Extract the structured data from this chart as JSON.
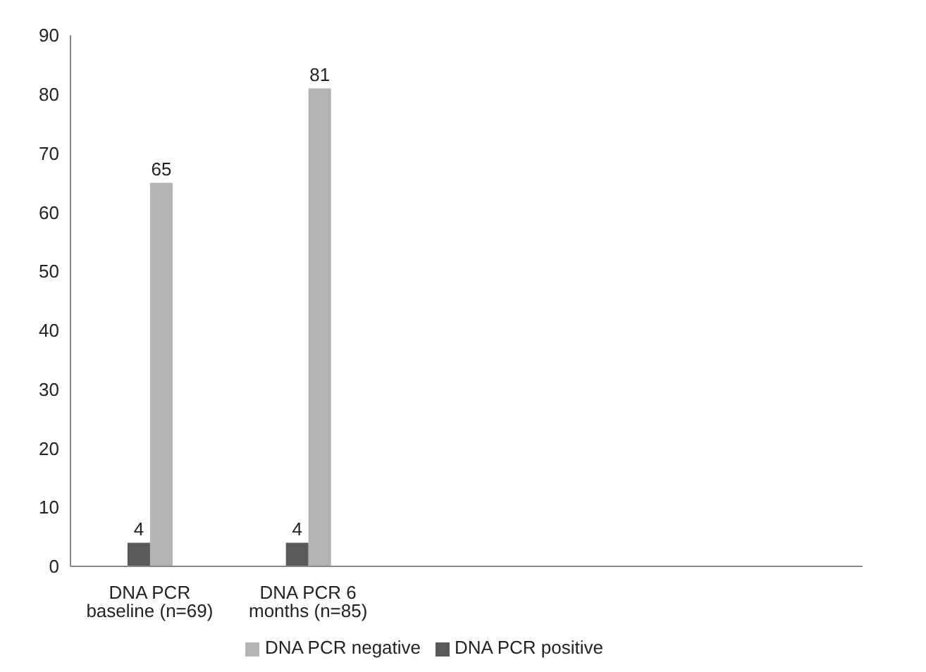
{
  "chart_data": {
    "type": "bar",
    "categories": [
      "DNA PCR baseline (n=69)",
      "DNA PCR 6 months  (n=85)",
      null,
      null,
      null
    ],
    "series": [
      {
        "name": "DNA PCR positive",
        "color": "#595959",
        "values": [
          4,
          4,
          null,
          null,
          null
        ]
      },
      {
        "name": "DNA PCR negative",
        "color": "#b3b3b3",
        "values": [
          65,
          81,
          null,
          null,
          null
        ]
      }
    ],
    "ylim": [
      0,
      90
    ],
    "yticks": [
      0,
      10,
      20,
      30,
      40,
      50,
      60,
      70,
      80,
      90
    ],
    "grid": false,
    "legend": "bottom",
    "data_labels": true
  }
}
